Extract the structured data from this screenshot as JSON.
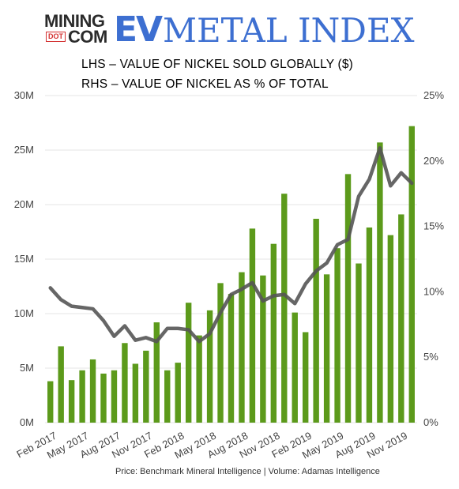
{
  "header": {
    "logo_mining": "MINING",
    "logo_dot": "DOT",
    "logo_com": "COM",
    "title_ev": "EV",
    "title_rest": "METAL INDEX"
  },
  "chart_data": {
    "type": "bar",
    "lines": [
      "LHS – VALUE OF NICKEL SOLD GLOBALLY ($)",
      "RHS – VALUE OF NICKEL AS % OF TOTAL"
    ],
    "source": "Price: Benchmark Mineral Intelligence | Volume: Adamas Intelligence",
    "x_tick_labels": [
      "Feb 2017",
      "May 2017",
      "Aug 2017",
      "Nov 2017",
      "Feb 2018",
      "May 2018",
      "Aug 2018",
      "Nov 2018",
      "Feb 2019",
      "May 2019",
      "Aug 2019",
      "Nov 2019"
    ],
    "y_left": {
      "ticks": [
        "0M",
        "5M",
        "10M",
        "15M",
        "20M",
        "25M",
        "30M"
      ],
      "ylim": [
        0,
        30
      ],
      "unit": "M"
    },
    "y_right": {
      "ticks": [
        "0%",
        "5%",
        "10%",
        "15%",
        "20%",
        "25%"
      ],
      "ylim": [
        0,
        25
      ],
      "unit": "%"
    },
    "months": [
      "Feb 2017",
      "Mar 2017",
      "Apr 2017",
      "May 2017",
      "Jun 2017",
      "Jul 2017",
      "Aug 2017",
      "Sep 2017",
      "Oct 2017",
      "Nov 2017",
      "Dec 2017",
      "Jan 2018",
      "Feb 2018",
      "Mar 2018",
      "Apr 2018",
      "May 2018",
      "Jun 2018",
      "Jul 2018",
      "Aug 2018",
      "Sep 2018",
      "Oct 2018",
      "Nov 2018",
      "Dec 2018",
      "Jan 2019",
      "Feb 2019",
      "Mar 2019",
      "Apr 2019",
      "May 2019",
      "Jun 2019",
      "Jul 2019",
      "Aug 2019",
      "Sep 2019",
      "Oct 2019",
      "Nov 2019",
      "Dec 2019"
    ],
    "series": [
      {
        "type": "bar",
        "axis": "left",
        "color": "#5c9a1b",
        "values": [
          3.8,
          7.0,
          3.9,
          4.8,
          5.8,
          4.5,
          4.8,
          7.3,
          5.4,
          6.6,
          9.2,
          4.8,
          5.5,
          11.0,
          8.0,
          10.3,
          12.8,
          11.8,
          13.8,
          17.8,
          13.5,
          16.4,
          21.0,
          10.1,
          8.3,
          18.7,
          13.6,
          16.0,
          22.8,
          14.6,
          17.9,
          25.7,
          17.2,
          19.1,
          27.2
        ]
      },
      {
        "type": "line",
        "axis": "right",
        "color": "#555555",
        "values": [
          10.3,
          9.4,
          8.9,
          8.8,
          8.7,
          7.8,
          6.6,
          7.4,
          6.3,
          6.5,
          6.2,
          7.2,
          7.2,
          7.1,
          6.2,
          6.8,
          8.4,
          9.8,
          10.2,
          10.7,
          9.3,
          9.7,
          9.8,
          9.1,
          10.6,
          11.6,
          12.2,
          13.6,
          14.0,
          17.3,
          18.6,
          21.0,
          18.1,
          19.1,
          18.3
        ]
      }
    ]
  }
}
